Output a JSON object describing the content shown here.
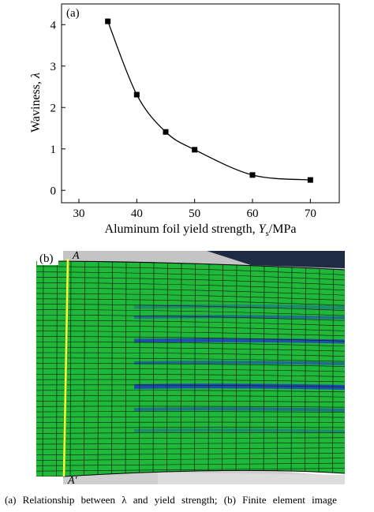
{
  "chart_data": {
    "type": "line",
    "panel_label": "(a)",
    "xlabel_prefix": "Aluminum foil yield strength, ",
    "xlabel_symbol": "Y",
    "xlabel_subscript": "s",
    "xlabel_suffix": "/MPa",
    "ylabel_prefix": "Waviness, ",
    "ylabel_symbol": "λ",
    "xlim": [
      27,
      75
    ],
    "ylim": [
      -0.3,
      4.5
    ],
    "xticks": [
      "30",
      "40",
      "50",
      "60",
      "70"
    ],
    "yticks": [
      "0",
      "1",
      "2",
      "3",
      "4"
    ],
    "x": [
      35,
      40,
      45,
      50,
      60,
      70
    ],
    "y": [
      4.08,
      2.31,
      1.41,
      0.98,
      0.37,
      0.25
    ],
    "marker": "square",
    "line_color": "#000000",
    "grid": false
  },
  "fe_image": {
    "panel_label": "(b)",
    "label_top": "A",
    "label_bottom": "A′",
    "mesh_color": "#1fb83a",
    "band_color": "#1e3fbf",
    "section_line_color": "#ffff33"
  },
  "caption": "(a) Relationship between λ and yield strength; (b) Finite element image"
}
